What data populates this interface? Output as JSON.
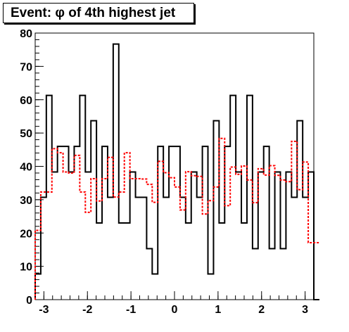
{
  "chart_data": {
    "type": "histogram",
    "title": "Event: φ of 4th highest jet",
    "xlabel": "",
    "ylabel": "",
    "xlim": [
      -3.2,
      3.2
    ],
    "ylim": [
      0,
      80
    ],
    "bin_edges_start": -3.2,
    "bin_width": 0.128,
    "xticks": [
      -3,
      -2,
      -1,
      0,
      1,
      2,
      3
    ],
    "yticks": [
      0,
      10,
      20,
      30,
      40,
      50,
      60,
      70,
      80
    ],
    "xtick_labels": [
      "-3",
      "-2",
      "-1",
      "0",
      "1",
      "2",
      "3"
    ],
    "ytick_labels": [
      "0",
      "10",
      "20",
      "30",
      "40",
      "50",
      "60",
      "70",
      "80"
    ],
    "series": [
      {
        "style": "solid",
        "color": "#000000",
        "values": [
          7.7,
          30.7,
          61.3,
          38.3,
          46,
          46,
          38.3,
          46,
          61.3,
          38.3,
          53.7,
          23,
          46,
          30.7,
          76.7,
          23,
          23,
          38.3,
          30.7,
          30.7,
          15.3,
          7.7,
          46,
          30.7,
          46,
          46,
          30.7,
          23,
          38.3,
          30.7,
          46,
          7.7,
          53.7,
          23,
          46,
          61.3,
          38.3,
          23,
          61.3,
          15.3,
          38.3,
          46,
          15.3,
          38.3,
          15.3,
          38.3,
          30.7,
          53.7,
          30.7,
          38.3,
          0
        ]
      },
      {
        "style": "dashed",
        "color": "#ff0000",
        "values": [
          20.8,
          32.3,
          32.3,
          45.3,
          44.1,
          38.3,
          38,
          43.3,
          32.3,
          26.2,
          36.3,
          29.6,
          36.3,
          42.7,
          30.8,
          32.3,
          44.1,
          36.3,
          36.3,
          36.2,
          34.6,
          29.2,
          41.5,
          38.1,
          36.6,
          33.8,
          26.9,
          38.4,
          37.2,
          37,
          25.7,
          29.7,
          33.8,
          48.4,
          28.2,
          39.8,
          37.6,
          40.1,
          35.9,
          29.1,
          39.3,
          37.4,
          40.2,
          37.3,
          35.9,
          35.4,
          47.5,
          33,
          41.3,
          17.1,
          17.1
        ]
      }
    ]
  }
}
